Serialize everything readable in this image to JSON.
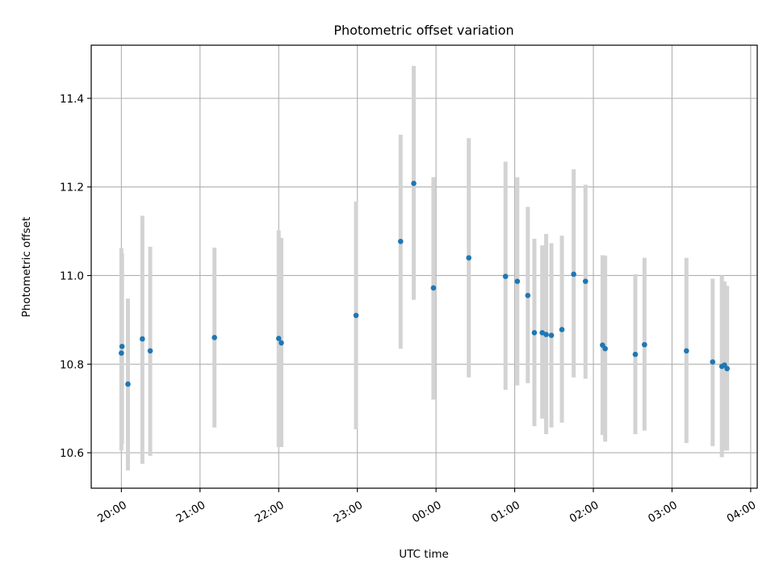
{
  "chart_data": {
    "type": "scatter",
    "title": "Photometric offset variation",
    "xlabel": "UTC time",
    "ylabel": "Photometric offset",
    "x_ticks": [
      "20:00",
      "21:00",
      "22:00",
      "23:00",
      "00:00",
      "01:00",
      "02:00",
      "03:00",
      "04:00"
    ],
    "x_tick_values": [
      0,
      60,
      120,
      180,
      240,
      300,
      360,
      420,
      480
    ],
    "x_units": "minutes since 20:00 UTC",
    "y_ticks": [
      "10.6",
      "10.8",
      "11.0",
      "11.2",
      "11.4"
    ],
    "y_tick_values": [
      10.6,
      10.8,
      11.0,
      11.2,
      11.4
    ],
    "xlim": [
      -23,
      485
    ],
    "ylim": [
      10.52,
      11.52
    ],
    "grid": true,
    "errorbar_color": "#d3d3d3",
    "point_color": "#1f77b4",
    "points": [
      {
        "x": 0,
        "y": 10.825,
        "err_low": 10.605,
        "err_high": 11.062
      },
      {
        "x": 0.5,
        "y": 10.84,
        "err_low": 10.62,
        "err_high": 11.05
      },
      {
        "x": 5,
        "y": 10.755,
        "err_low": 10.56,
        "err_high": 10.948
      },
      {
        "x": 16,
        "y": 10.857,
        "err_low": 10.575,
        "err_high": 11.135
      },
      {
        "x": 22,
        "y": 10.83,
        "err_low": 10.593,
        "err_high": 11.065
      },
      {
        "x": 71,
        "y": 10.86,
        "err_low": 10.657,
        "err_high": 11.063
      },
      {
        "x": 120,
        "y": 10.858,
        "err_low": 10.613,
        "err_high": 11.102
      },
      {
        "x": 122,
        "y": 10.848,
        "err_low": 10.613,
        "err_high": 11.085
      },
      {
        "x": 179,
        "y": 10.91,
        "err_low": 10.653,
        "err_high": 11.167
      },
      {
        "x": 213,
        "y": 11.077,
        "err_low": 10.835,
        "err_high": 11.318
      },
      {
        "x": 223,
        "y": 11.208,
        "err_low": 10.945,
        "err_high": 11.473
      },
      {
        "x": 238,
        "y": 10.972,
        "err_low": 10.72,
        "err_high": 11.222
      },
      {
        "x": 265,
        "y": 11.04,
        "err_low": 10.77,
        "err_high": 11.31
      },
      {
        "x": 293,
        "y": 10.998,
        "err_low": 10.742,
        "err_high": 11.257
      },
      {
        "x": 302,
        "y": 10.987,
        "err_low": 10.752,
        "err_high": 11.222
      },
      {
        "x": 310,
        "y": 10.955,
        "err_low": 10.757,
        "err_high": 11.155
      },
      {
        "x": 315,
        "y": 10.871,
        "err_low": 10.66,
        "err_high": 11.083
      },
      {
        "x": 321,
        "y": 10.871,
        "err_low": 10.677,
        "err_high": 11.068
      },
      {
        "x": 324,
        "y": 10.867,
        "err_low": 10.642,
        "err_high": 11.094
      },
      {
        "x": 328,
        "y": 10.865,
        "err_low": 10.657,
        "err_high": 11.073
      },
      {
        "x": 336,
        "y": 10.878,
        "err_low": 10.668,
        "err_high": 11.09
      },
      {
        "x": 345,
        "y": 11.003,
        "err_low": 10.77,
        "err_high": 11.24
      },
      {
        "x": 354,
        "y": 10.987,
        "err_low": 10.767,
        "err_high": 11.205
      },
      {
        "x": 367,
        "y": 10.843,
        "err_low": 10.64,
        "err_high": 11.046
      },
      {
        "x": 369,
        "y": 10.835,
        "err_low": 10.625,
        "err_high": 11.045
      },
      {
        "x": 392,
        "y": 10.822,
        "err_low": 10.642,
        "err_high": 11.003
      },
      {
        "x": 399,
        "y": 10.844,
        "err_low": 10.65,
        "err_high": 11.04
      },
      {
        "x": 431,
        "y": 10.83,
        "err_low": 10.622,
        "err_high": 11.04
      },
      {
        "x": 451,
        "y": 10.805,
        "err_low": 10.615,
        "err_high": 10.993
      },
      {
        "x": 458,
        "y": 10.795,
        "err_low": 10.59,
        "err_high": 11.0
      },
      {
        "x": 460,
        "y": 10.798,
        "err_low": 10.605,
        "err_high": 10.987
      },
      {
        "x": 462,
        "y": 10.79,
        "err_low": 10.605,
        "err_high": 10.977
      }
    ]
  }
}
